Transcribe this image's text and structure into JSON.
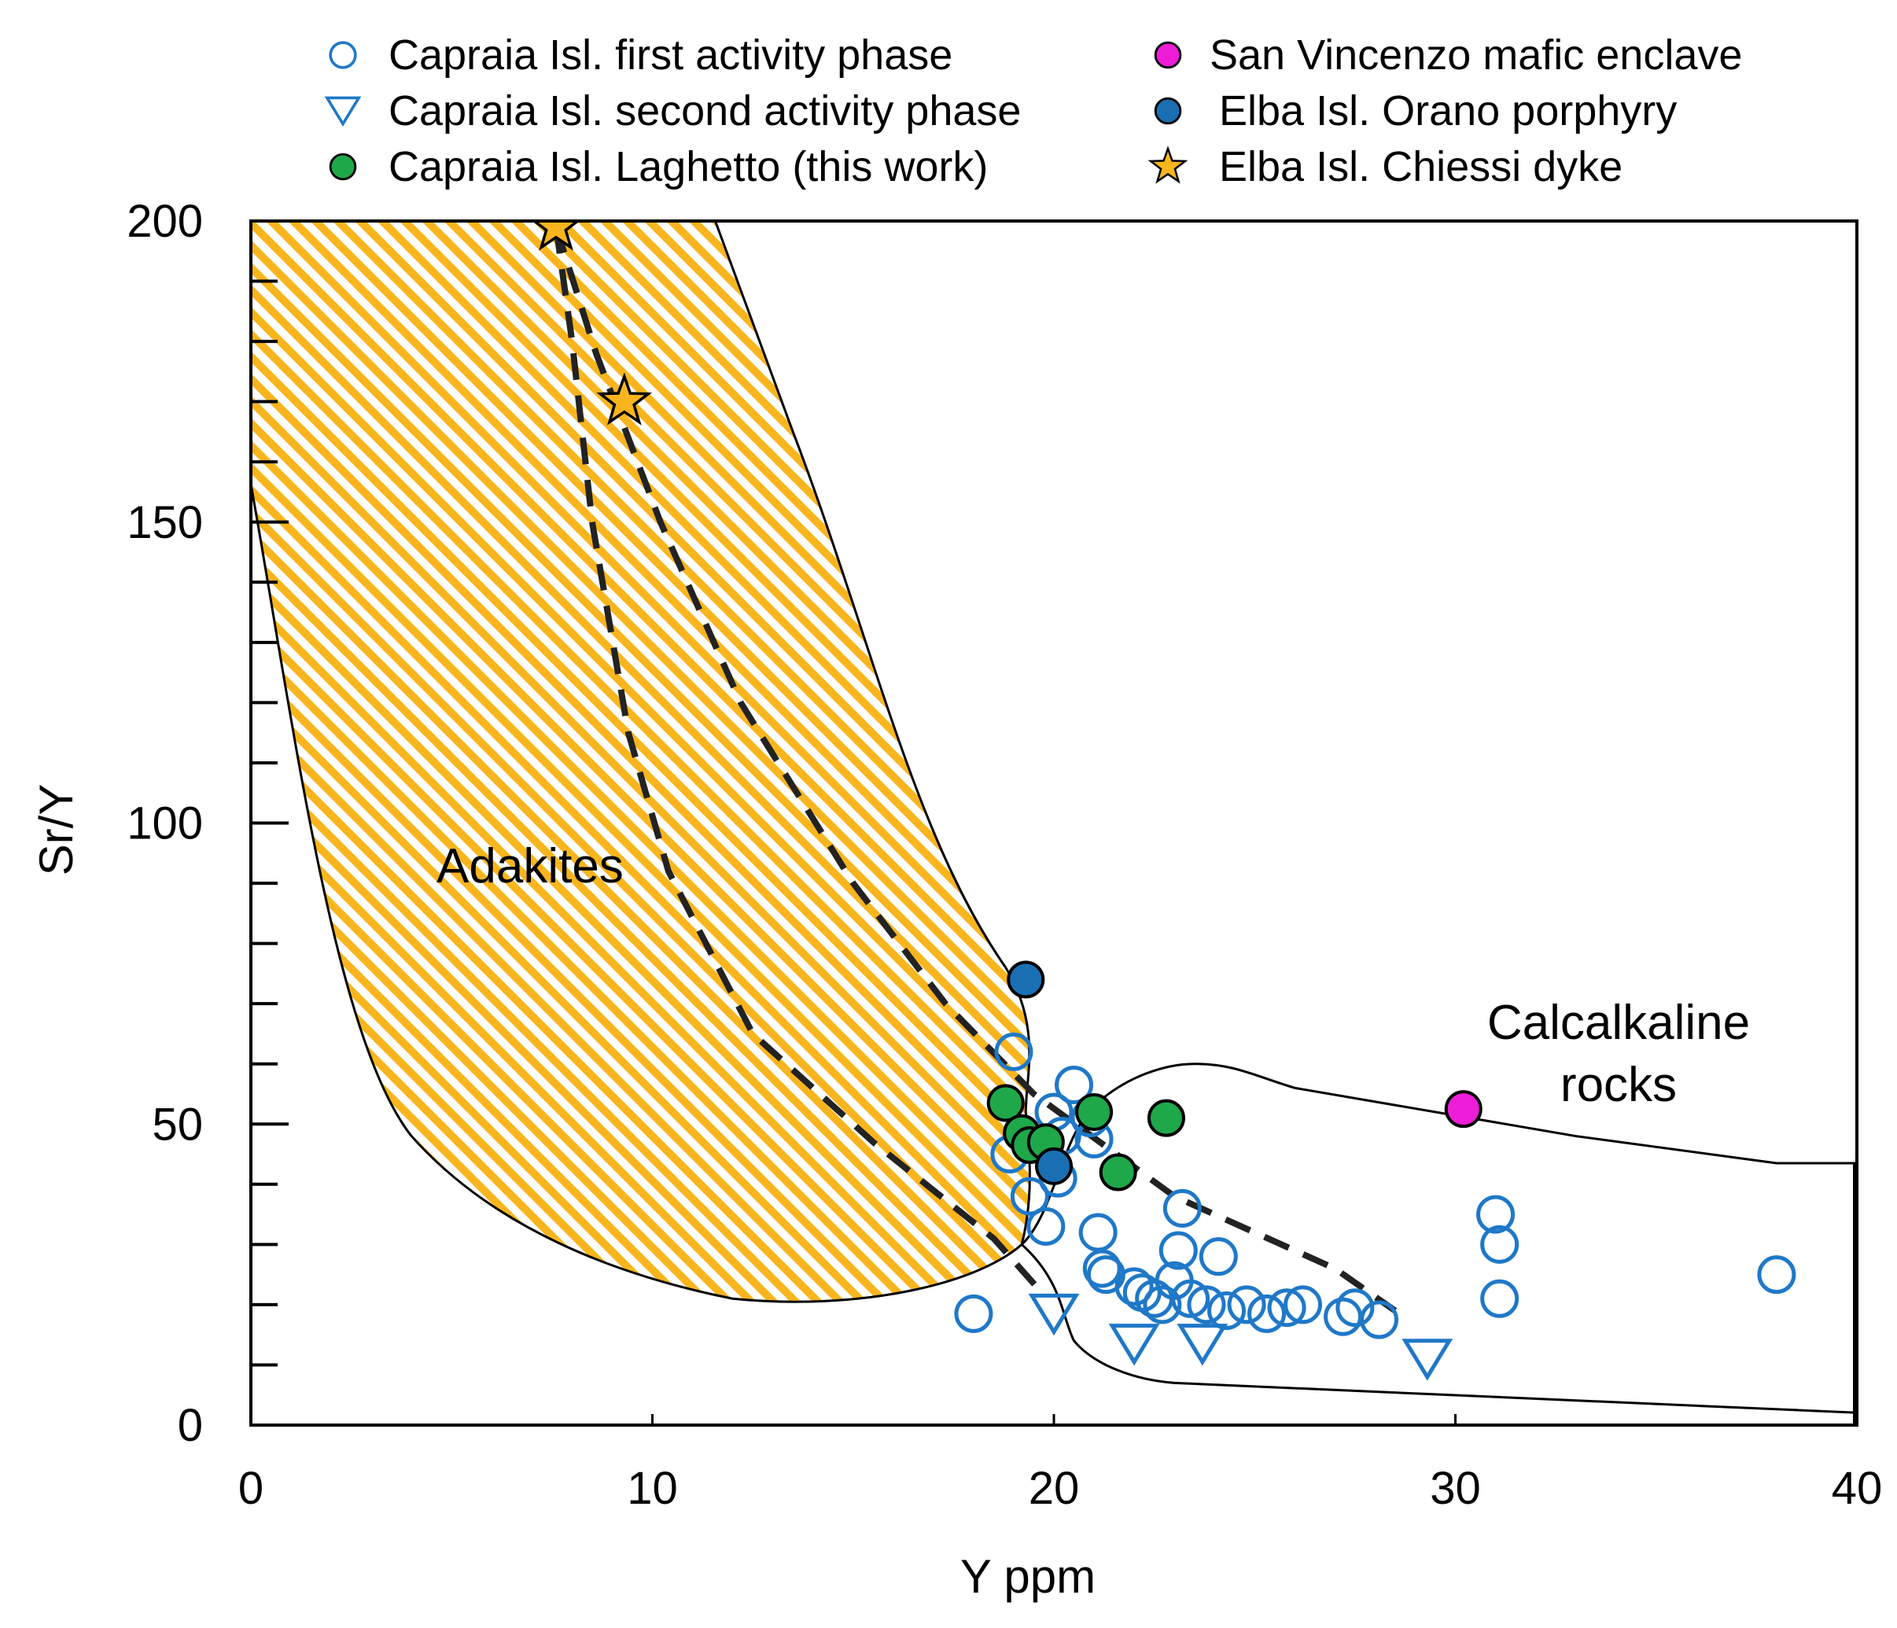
{
  "chart_data": {
    "type": "scatter",
    "xlabel": "Y ppm",
    "ylabel": "Sr/Y",
    "xlim": [
      0,
      40
    ],
    "ylim": [
      0,
      200
    ],
    "xticks": [
      0,
      10,
      20,
      30,
      40
    ],
    "yticks": [
      0,
      50,
      100,
      150,
      200
    ],
    "grid": false,
    "legend_position": "top",
    "regions": [
      {
        "name": "adakites",
        "label": "Adakites",
        "fill": "hatched",
        "color": "#f9b51d"
      },
      {
        "name": "calcalkaline",
        "label_lines": [
          "Calcalkaline",
          "rocks"
        ],
        "fill": "none"
      }
    ],
    "trends": [
      {
        "name": "trend-1",
        "style": "dashed",
        "points": [
          [
            7.6,
            199
          ],
          [
            8.0,
            180
          ],
          [
            8.5,
            150
          ],
          [
            9.4,
            115
          ],
          [
            10.4,
            92
          ],
          [
            12.5,
            65
          ],
          [
            15.5,
            47
          ],
          [
            18.5,
            31
          ],
          [
            19.7,
            22
          ]
        ]
      },
      {
        "name": "trend-2",
        "style": "dashed",
        "points": [
          [
            7.6,
            199
          ],
          [
            8.6,
            178
          ],
          [
            10.2,
            150
          ],
          [
            12.2,
            120
          ],
          [
            15.0,
            90
          ],
          [
            17.3,
            70
          ],
          [
            19.5,
            55
          ],
          [
            23.0,
            38
          ],
          [
            27.0,
            26
          ],
          [
            28.5,
            19
          ]
        ]
      }
    ],
    "series": [
      {
        "name": "Capraia Isl. first activity phase",
        "marker": "circle-open",
        "color": "#1f78c8",
        "points": [
          [
            18.0,
            18.5
          ],
          [
            19.0,
            62
          ],
          [
            18.9,
            45
          ],
          [
            19.4,
            38
          ],
          [
            19.8,
            33
          ],
          [
            20.0,
            52
          ],
          [
            20.1,
            41
          ],
          [
            20.2,
            48
          ],
          [
            20.5,
            56.5
          ],
          [
            20.9,
            51
          ],
          [
            21.0,
            47.5
          ],
          [
            21.1,
            32
          ],
          [
            21.2,
            26
          ],
          [
            21.3,
            25
          ],
          [
            22.0,
            23
          ],
          [
            22.2,
            22
          ],
          [
            22.5,
            21
          ],
          [
            22.7,
            20
          ],
          [
            23.0,
            24
          ],
          [
            23.1,
            29
          ],
          [
            23.2,
            36
          ],
          [
            23.4,
            21
          ],
          [
            23.8,
            20
          ],
          [
            24.1,
            28
          ],
          [
            24.3,
            19
          ],
          [
            24.8,
            20
          ],
          [
            25.3,
            18.5
          ],
          [
            25.8,
            19.5
          ],
          [
            26.2,
            20
          ],
          [
            27.2,
            18
          ],
          [
            27.5,
            19.5
          ],
          [
            28.1,
            17.5
          ],
          [
            31.0,
            35
          ],
          [
            31.1,
            30
          ],
          [
            31.1,
            21
          ],
          [
            38.0,
            25
          ]
        ]
      },
      {
        "name": "Capraia Isl. second activity phase",
        "marker": "triangle-down-open",
        "color": "#1f78c8",
        "points": [
          [
            20.0,
            18.5
          ],
          [
            22.0,
            13.5
          ],
          [
            23.7,
            13.5
          ],
          [
            29.3,
            11
          ]
        ]
      },
      {
        "name": "Capraia Isl. Laghetto (this work)",
        "marker": "circle-filled",
        "color": "#1ea84a",
        "points": [
          [
            18.8,
            53.5
          ],
          [
            19.2,
            48.5
          ],
          [
            19.4,
            46.5
          ],
          [
            19.8,
            47
          ],
          [
            21.0,
            52
          ],
          [
            22.8,
            51
          ],
          [
            21.6,
            42
          ]
        ]
      },
      {
        "name": "San Vincenzo mafic  enclave",
        "marker": "circle-filled",
        "color": "#ee1dd8",
        "points": [
          [
            30.2,
            52.5
          ]
        ]
      },
      {
        "name": "Elba Isl. Orano porphyry",
        "marker": "circle-filled",
        "color": "#1a6fb3",
        "points": [
          [
            19.3,
            74
          ],
          [
            20.0,
            43
          ]
        ]
      },
      {
        "name": "Elba Isl. Chiessi dyke",
        "marker": "star",
        "color": "#f9b51d",
        "points": [
          [
            7.6,
            199
          ],
          [
            9.3,
            170
          ]
        ]
      }
    ]
  }
}
